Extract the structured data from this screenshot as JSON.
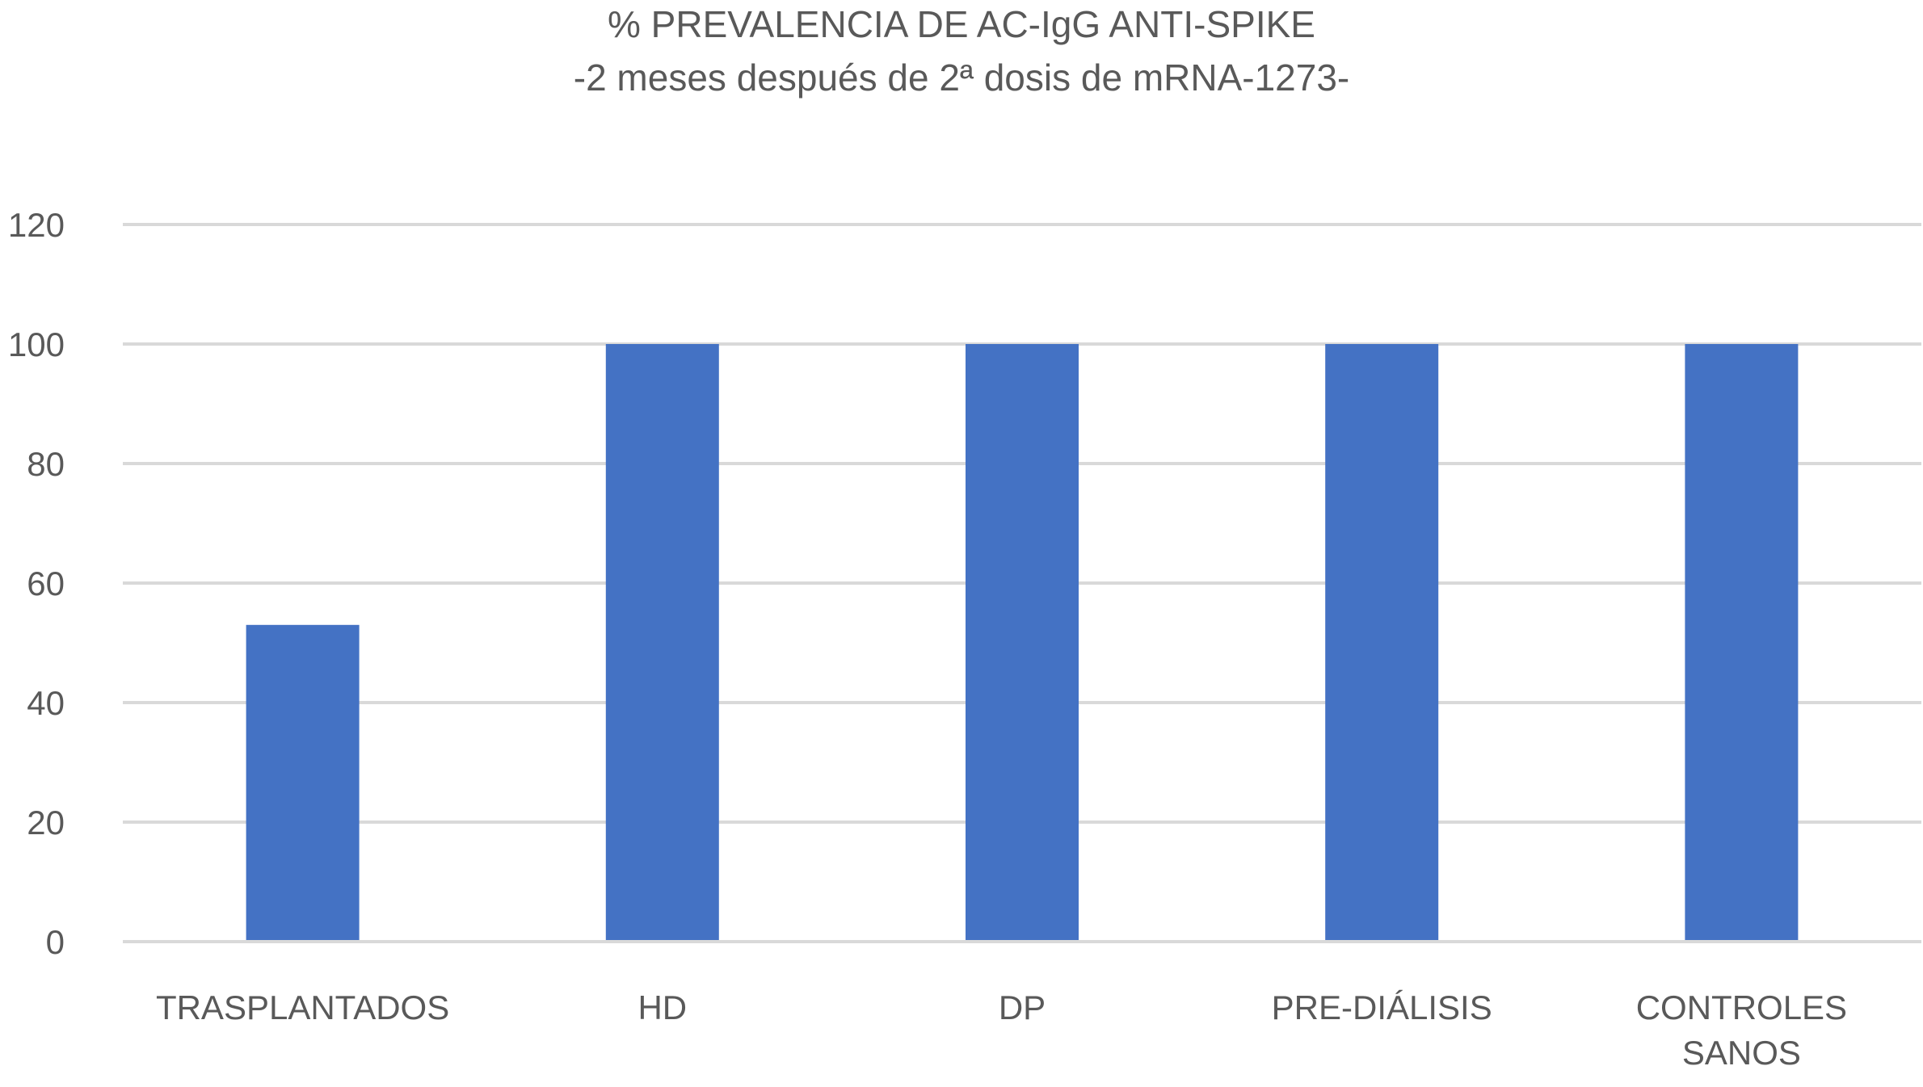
{
  "chart_data": {
    "type": "bar",
    "title": "% PREVALENCIA DE AC-IgG ANTI-SPIKE",
    "subtitle": "-2 meses después de 2ª dosis de mRNA-1273-",
    "categories": [
      [
        "TRASPLANTADOS"
      ],
      [
        "HD"
      ],
      [
        "DP"
      ],
      [
        "PRE-DIÁLISIS"
      ],
      [
        "CONTROLES",
        "SANOS"
      ]
    ],
    "values": [
      53,
      100,
      100,
      100,
      100
    ],
    "xlabel": "",
    "ylabel": "",
    "ylim": [
      0,
      120
    ],
    "yticks": [
      "0",
      "20",
      "40",
      "60",
      "80",
      "100",
      "120"
    ],
    "grid": true,
    "legend": "none",
    "bar_color": "#4472C4",
    "grid_color": "#D9D9D9"
  }
}
